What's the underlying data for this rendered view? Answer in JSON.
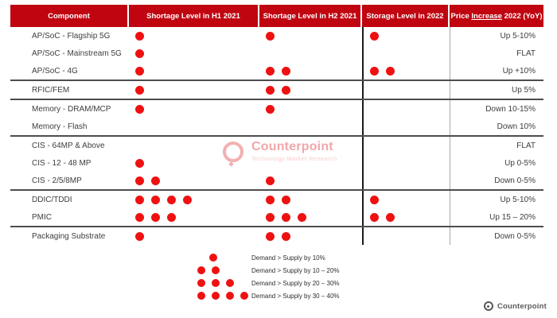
{
  "chart_data": {
    "type": "table",
    "title": "Component shortage levels and 2022 price change (dot count = shortage severity)",
    "columns": [
      "Component",
      "Shortage Level in H1 2021",
      "Shortage Level in H2 2021",
      "Storage Level in 2022",
      "Price Increase 2022 (YoY)"
    ],
    "price_header_underline_word": "Increase",
    "rows": [
      {
        "component": "AP/SoC - Flagship 5G",
        "h1_dots": 1,
        "h2_dots": 1,
        "storage_dots": 1,
        "price": "Up 5-10%",
        "group_start": false
      },
      {
        "component": "AP/SoC - Mainstream 5G",
        "h1_dots": 1,
        "h2_dots": 0,
        "storage_dots": 0,
        "price": "FLAT",
        "group_start": false
      },
      {
        "component": "AP/SoC - 4G",
        "h1_dots": 1,
        "h2_dots": 2,
        "storage_dots": 2,
        "price": "Up +10%",
        "group_start": false
      },
      {
        "component": "RFIC/FEM",
        "h1_dots": 1,
        "h2_dots": 2,
        "storage_dots": 0,
        "price": "Up 5%",
        "group_start": true
      },
      {
        "component": "Memory - DRAM/MCP",
        "h1_dots": 1,
        "h2_dots": 1,
        "storage_dots": 0,
        "price": "Down 10-15%",
        "group_start": true
      },
      {
        "component": "Memory - Flash",
        "h1_dots": 0,
        "h2_dots": 0,
        "storage_dots": 0,
        "price": "Down 10%",
        "group_start": false
      },
      {
        "component": "CIS - 64MP & Above",
        "h1_dots": 0,
        "h2_dots": 0,
        "storage_dots": 0,
        "price": "FLAT",
        "group_start": true
      },
      {
        "component": "CIS - 12 - 48 MP",
        "h1_dots": 1,
        "h2_dots": 0,
        "storage_dots": 0,
        "price": "Up 0-5%",
        "group_start": false
      },
      {
        "component": "CIS - 2/5/8MP",
        "h1_dots": 2,
        "h2_dots": 1,
        "storage_dots": 0,
        "price": "Down 0-5%",
        "group_start": false
      },
      {
        "component": "DDIC/TDDI",
        "h1_dots": 4,
        "h2_dots": 2,
        "storage_dots": 1,
        "price": "Up 5-10%",
        "group_start": true
      },
      {
        "component": "PMIC",
        "h1_dots": 3,
        "h2_dots": 3,
        "storage_dots": 2,
        "price": "Up 15 – 20%",
        "group_start": false
      },
      {
        "component": "Packaging Substrate",
        "h1_dots": 1,
        "h2_dots": 2,
        "storage_dots": 0,
        "price": "Down 0-5%",
        "group_start": true
      }
    ],
    "legend": [
      {
        "dots": 1,
        "label": "Demand > Supply by 10%"
      },
      {
        "dots": 2,
        "label": "Demand > Supply by 10 – 20%"
      },
      {
        "dots": 3,
        "label": "Demand > Supply by 20 – 30%"
      },
      {
        "dots": 4,
        "label": "Demand > Supply by 30 – 40%"
      }
    ]
  },
  "watermark": {
    "title": "Counterpoint",
    "subtitle": "Technology Market Research"
  },
  "footer": {
    "brand": "Counterpoint"
  },
  "colors": {
    "header_red": "#c00511",
    "dot_red": "#ee1111",
    "brand_gray": "#58595b",
    "watermark_pink": "#f2a7aa",
    "separator_gray": "#4d4d4d"
  }
}
